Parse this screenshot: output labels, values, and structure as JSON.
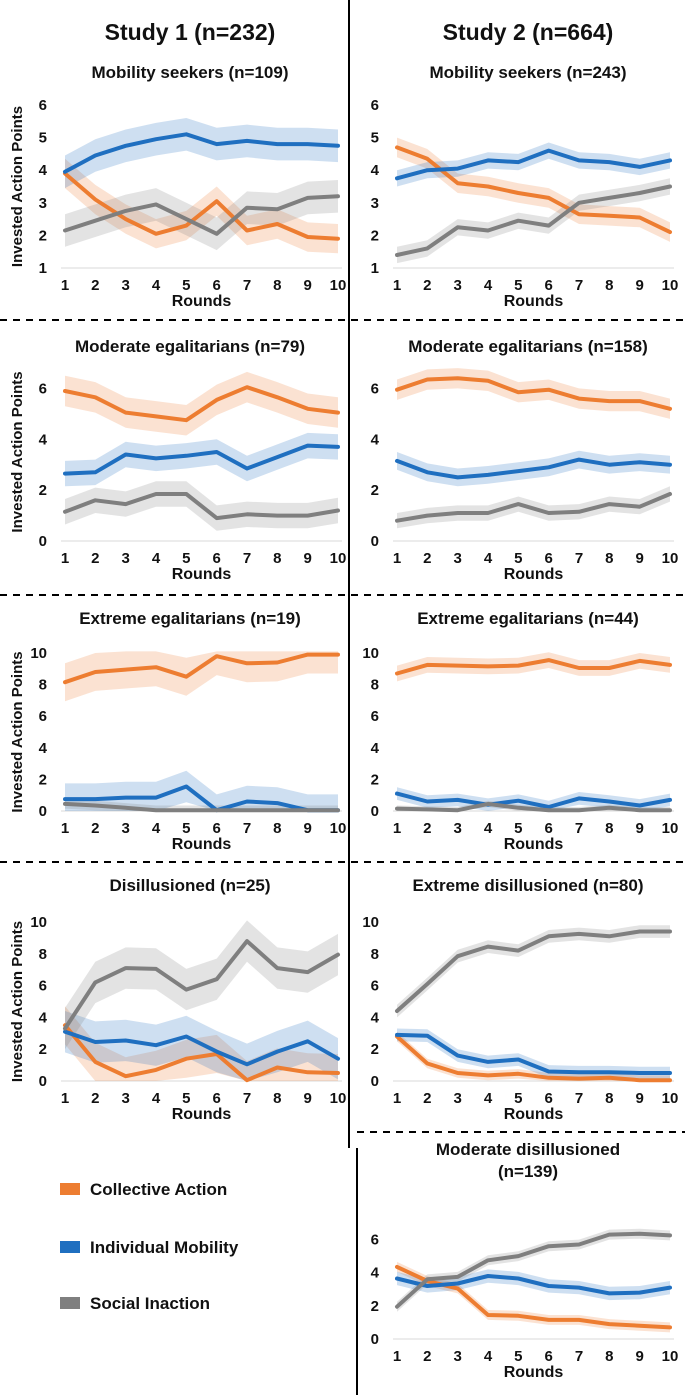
{
  "colors": {
    "collective": "#ED7D31",
    "mobility": "#1F6FC0",
    "inaction": "#7F7F7F"
  },
  "headers": {
    "study1": "Study 1 (n=232)",
    "study2": "Study 2 (n=664)"
  },
  "axis": {
    "ylabel": "Invested Action Points",
    "xlabel": "Rounds"
  },
  "legend": {
    "collective": "Collective Action",
    "mobility": "Individual Mobility",
    "inaction": "Social Inaction"
  },
  "chart_data": [
    {
      "type": "line",
      "study": "Study 1",
      "title": "Mobility seekers (n=109)",
      "xlabel": "Rounds",
      "ylabel": "Invested Action Points",
      "x": [
        1,
        2,
        3,
        4,
        5,
        6,
        7,
        8,
        9,
        10
      ],
      "ylim": [
        1,
        6
      ],
      "yticks": [
        1,
        2,
        3,
        4,
        5,
        6
      ],
      "series": [
        {
          "name": "Collective Action",
          "values": [
            3.9,
            3.1,
            2.5,
            2.05,
            2.3,
            3.05,
            2.15,
            2.35,
            1.95,
            1.9
          ],
          "band": 0.45
        },
        {
          "name": "Individual Mobility",
          "values": [
            3.95,
            4.45,
            4.75,
            4.95,
            5.1,
            4.8,
            4.9,
            4.8,
            4.8,
            4.75
          ],
          "band": 0.5
        },
        {
          "name": "Social Inaction",
          "values": [
            2.15,
            2.45,
            2.75,
            2.95,
            2.5,
            2.05,
            2.85,
            2.8,
            3.15,
            3.2
          ],
          "band": 0.5
        }
      ]
    },
    {
      "type": "line",
      "study": "Study 2",
      "title": "Mobility seekers (n=243)",
      "xlabel": "Rounds",
      "ylabel": "",
      "x": [
        1,
        2,
        3,
        4,
        5,
        6,
        7,
        8,
        9,
        10
      ],
      "ylim": [
        1,
        6
      ],
      "yticks": [
        1,
        2,
        3,
        4,
        5,
        6
      ],
      "series": [
        {
          "name": "Collective Action",
          "values": [
            4.7,
            4.35,
            3.6,
            3.5,
            3.3,
            3.15,
            2.65,
            2.6,
            2.55,
            2.1
          ],
          "band": 0.3
        },
        {
          "name": "Individual Mobility",
          "values": [
            3.75,
            4.0,
            4.05,
            4.3,
            4.25,
            4.6,
            4.3,
            4.25,
            4.1,
            4.3
          ],
          "band": 0.25
        },
        {
          "name": "Social Inaction",
          "values": [
            1.4,
            1.6,
            2.25,
            2.15,
            2.45,
            2.3,
            3.0,
            3.15,
            3.3,
            3.5
          ],
          "band": 0.25
        }
      ]
    },
    {
      "type": "line",
      "study": "Study 1",
      "title": "Moderate egalitarians (n=79)",
      "xlabel": "Rounds",
      "ylabel": "Invested Action Points",
      "x": [
        1,
        2,
        3,
        4,
        5,
        6,
        7,
        8,
        9,
        10
      ],
      "ylim": [
        0,
        7
      ],
      "yticks": [
        0,
        2,
        4,
        6
      ],
      "series": [
        {
          "name": "Collective Action",
          "values": [
            5.9,
            5.65,
            5.05,
            4.9,
            4.75,
            5.55,
            6.05,
            5.65,
            5.2,
            5.05
          ],
          "band": 0.6
        },
        {
          "name": "Individual Mobility",
          "values": [
            2.65,
            2.7,
            3.4,
            3.25,
            3.35,
            3.5,
            2.85,
            3.3,
            3.75,
            3.7
          ],
          "band": 0.5
        },
        {
          "name": "Social Inaction",
          "values": [
            1.15,
            1.6,
            1.45,
            1.85,
            1.85,
            0.9,
            1.05,
            1.0,
            1.0,
            1.2
          ],
          "band": 0.5
        }
      ]
    },
    {
      "type": "line",
      "study": "Study 2",
      "title": "Moderate egalitarians (n=158)",
      "xlabel": "Rounds",
      "ylabel": "",
      "x": [
        1,
        2,
        3,
        4,
        5,
        6,
        7,
        8,
        9,
        10
      ],
      "ylim": [
        0,
        7
      ],
      "yticks": [
        0,
        2,
        4,
        6
      ],
      "series": [
        {
          "name": "Collective Action",
          "values": [
            5.95,
            6.35,
            6.4,
            6.3,
            5.85,
            5.95,
            5.6,
            5.5,
            5.5,
            5.2
          ],
          "band": 0.4
        },
        {
          "name": "Individual Mobility",
          "values": [
            3.15,
            2.7,
            2.5,
            2.6,
            2.75,
            2.9,
            3.2,
            3.0,
            3.1,
            3.0
          ],
          "band": 0.35
        },
        {
          "name": "Social Inaction",
          "values": [
            0.8,
            1.0,
            1.1,
            1.1,
            1.45,
            1.1,
            1.15,
            1.45,
            1.35,
            1.85
          ],
          "band": 0.3
        }
      ]
    },
    {
      "type": "line",
      "study": "Study 1",
      "title": "Extreme egalitarians (n=19)",
      "xlabel": "Rounds",
      "ylabel": "Invested Action Points",
      "x": [
        1,
        2,
        3,
        4,
        5,
        6,
        7,
        8,
        9,
        10
      ],
      "ylim": [
        0,
        10
      ],
      "yticks": [
        0,
        2,
        4,
        6,
        8,
        10
      ],
      "series": [
        {
          "name": "Collective Action",
          "values": [
            8.15,
            8.8,
            8.95,
            9.1,
            8.5,
            9.8,
            9.35,
            9.4,
            9.9,
            9.9
          ],
          "band": 1.2
        },
        {
          "name": "Individual Mobility",
          "values": [
            0.75,
            0.75,
            0.85,
            0.85,
            1.55,
            0.05,
            0.6,
            0.5,
            0.05,
            0.05
          ],
          "band": 1.0
        },
        {
          "name": "Social Inaction",
          "values": [
            0.45,
            0.35,
            0.2,
            0.05,
            0.05,
            0.05,
            0.05,
            0.05,
            0.05,
            0.05
          ],
          "band": 0.3
        }
      ]
    },
    {
      "type": "line",
      "study": "Study 2",
      "title": "Extreme egalitarians (n=44)",
      "xlabel": "Rounds",
      "ylabel": "",
      "x": [
        1,
        2,
        3,
        4,
        5,
        6,
        7,
        8,
        9,
        10
      ],
      "ylim": [
        0,
        10
      ],
      "yticks": [
        0,
        2,
        4,
        6,
        8,
        10
      ],
      "series": [
        {
          "name": "Collective Action",
          "values": [
            8.7,
            9.25,
            9.2,
            9.15,
            9.2,
            9.55,
            9.05,
            9.05,
            9.5,
            9.25
          ],
          "band": 0.5
        },
        {
          "name": "Individual Mobility",
          "values": [
            1.1,
            0.6,
            0.7,
            0.4,
            0.65,
            0.25,
            0.8,
            0.6,
            0.35,
            0.7
          ],
          "band": 0.4
        },
        {
          "name": "Social Inaction",
          "values": [
            0.15,
            0.1,
            0.05,
            0.45,
            0.2,
            0.05,
            0.05,
            0.2,
            0.05,
            0.05
          ],
          "band": 0.2
        }
      ]
    },
    {
      "type": "line",
      "study": "Study 1",
      "title": "Disillusioned (n=25)",
      "xlabel": "Rounds",
      "ylabel": "Invested Action Points",
      "x": [
        1,
        2,
        3,
        4,
        5,
        6,
        7,
        8,
        9,
        10
      ],
      "ylim": [
        0,
        10
      ],
      "yticks": [
        0,
        2,
        4,
        6,
        8,
        10
      ],
      "series": [
        {
          "name": "Collective Action",
          "values": [
            3.5,
            1.2,
            0.3,
            0.7,
            1.4,
            1.7,
            0.05,
            0.85,
            0.55,
            0.5
          ],
          "band": 1.2
        },
        {
          "name": "Individual Mobility",
          "values": [
            3.1,
            2.45,
            2.55,
            2.25,
            2.8,
            1.85,
            1.05,
            1.85,
            2.5,
            1.4
          ],
          "band": 1.3
        },
        {
          "name": "Social Inaction",
          "values": [
            3.3,
            6.2,
            7.1,
            7.05,
            5.75,
            6.4,
            8.8,
            7.1,
            6.85,
            7.95
          ],
          "band": 1.3
        }
      ]
    },
    {
      "type": "line",
      "study": "Study 2",
      "title": "Extreme disillusioned (n=80)",
      "xlabel": "Rounds",
      "ylabel": "",
      "x": [
        1,
        2,
        3,
        4,
        5,
        6,
        7,
        8,
        9,
        10
      ],
      "ylim": [
        0,
        10
      ],
      "yticks": [
        0,
        2,
        4,
        6,
        8,
        10
      ],
      "series": [
        {
          "name": "Collective Action",
          "values": [
            2.8,
            1.1,
            0.5,
            0.35,
            0.45,
            0.2,
            0.15,
            0.2,
            0.05,
            0.05
          ],
          "band": 0.3
        },
        {
          "name": "Individual Mobility",
          "values": [
            2.9,
            2.85,
            1.6,
            1.2,
            1.35,
            0.6,
            0.55,
            0.55,
            0.5,
            0.5
          ],
          "band": 0.4
        },
        {
          "name": "Social Inaction",
          "values": [
            4.4,
            6.1,
            7.85,
            8.45,
            8.2,
            9.1,
            9.25,
            9.1,
            9.4,
            9.4
          ],
          "band": 0.4
        }
      ]
    },
    {
      "type": "line",
      "study": "Study 2",
      "title": "Moderate disillusioned\n(n=139)",
      "xlabel": "Rounds",
      "ylabel": "",
      "x": [
        1,
        2,
        3,
        4,
        5,
        6,
        7,
        8,
        9,
        10
      ],
      "ylim": [
        0,
        7
      ],
      "yticks": [
        0,
        2,
        4,
        6
      ],
      "series": [
        {
          "name": "Collective Action",
          "values": [
            4.35,
            3.5,
            3.05,
            1.45,
            1.4,
            1.15,
            1.15,
            0.9,
            0.8,
            0.7
          ],
          "band": 0.3
        },
        {
          "name": "Individual Mobility",
          "values": [
            3.65,
            3.2,
            3.35,
            3.8,
            3.65,
            3.2,
            3.1,
            2.75,
            2.8,
            3.1
          ],
          "band": 0.4
        },
        {
          "name": "Social Inaction",
          "values": [
            1.95,
            3.6,
            3.75,
            4.75,
            5.0,
            5.6,
            5.7,
            6.3,
            6.35,
            6.25
          ],
          "band": 0.3
        }
      ]
    }
  ]
}
